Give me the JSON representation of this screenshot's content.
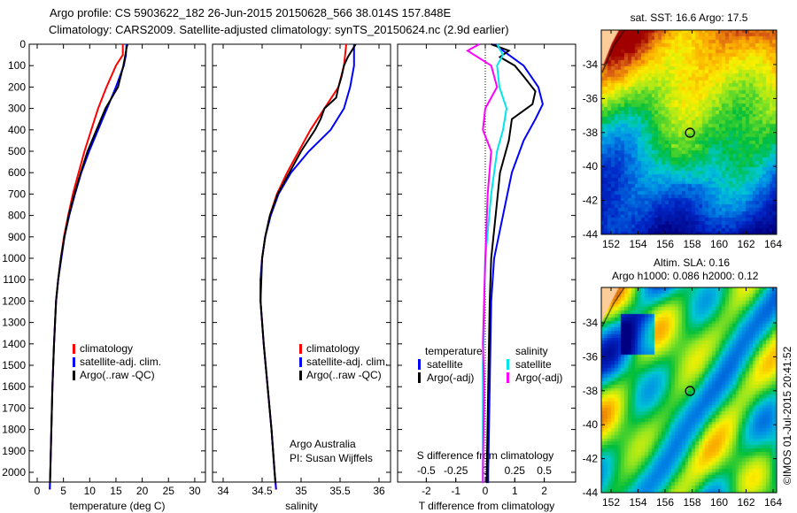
{
  "title_line1": "Argo profile: CS 5903622_182 26-Jun-2015 20150628_566 38.014S 157.848E",
  "title_line2": "Climatology: CARS2009. Satellite-adjusted climatology: synTS_20150624.nc (2.9d earlier)",
  "credit": "©IMOS 01-Jul-2015 20:41:52",
  "colors": {
    "climatology": "#ff0000",
    "satellite": "#0000ff",
    "argo": "#000000",
    "s_satellite": "#00e5ee",
    "s_argo": "#ff00ff"
  },
  "chart_data": [
    {
      "type": "line",
      "name": "temperature",
      "xlabel": "temperature (deg C)",
      "xlim": [
        -1.5,
        32
      ],
      "xticks": [
        "0",
        "5",
        "10",
        "15",
        "20",
        "25",
        "30"
      ],
      "ylim": [
        0,
        2090
      ],
      "yticks": [
        "0",
        "100",
        "200",
        "300",
        "400",
        "500",
        "600",
        "700",
        "800",
        "900",
        "1000",
        "1100",
        "1200",
        "1300",
        "1400",
        "1500",
        "1600",
        "1700",
        "1800",
        "1900",
        "2000"
      ],
      "legend": [
        "climatology",
        "satellite-adj. clim.",
        "Argo(..raw -QC)"
      ],
      "series": [
        {
          "name": "climatology",
          "color": "#ff0000",
          "points": [
            [
              0,
              16.3
            ],
            [
              50,
              16.3
            ],
            [
              100,
              15
            ],
            [
              200,
              13.2
            ],
            [
              300,
              11.6
            ],
            [
              400,
              10.3
            ],
            [
              500,
              9.0
            ],
            [
              600,
              7.9
            ],
            [
              700,
              6.8
            ],
            [
              800,
              5.9
            ],
            [
              900,
              5.1
            ],
            [
              1000,
              4.5
            ],
            [
              1100,
              4.0
            ],
            [
              1200,
              3.6
            ],
            [
              1400,
              3.2
            ],
            [
              1600,
              2.9
            ],
            [
              1800,
              2.7
            ],
            [
              2000,
              2.5
            ],
            [
              2080,
              2.4
            ]
          ]
        },
        {
          "name": "satellite-adj. clim.",
          "color": "#0000ff",
          "points": [
            [
              0,
              17.0
            ],
            [
              50,
              16.9
            ],
            [
              100,
              16.5
            ],
            [
              200,
              15.0
            ],
            [
              300,
              13.3
            ],
            [
              400,
              11.6
            ],
            [
              500,
              9.9
            ],
            [
              600,
              8.4
            ],
            [
              700,
              7.2
            ],
            [
              800,
              6.1
            ],
            [
              900,
              5.2
            ],
            [
              1000,
              4.6
            ],
            [
              1100,
              4.0
            ],
            [
              1200,
              3.6
            ],
            [
              1400,
              3.2
            ],
            [
              1600,
              2.9
            ],
            [
              1800,
              2.7
            ],
            [
              2000,
              2.5
            ],
            [
              2080,
              2.4
            ]
          ]
        },
        {
          "name": "Argo(..raw -QC)",
          "color": "#000000",
          "points": [
            [
              0,
              17.2
            ],
            [
              20,
              17.0
            ],
            [
              50,
              16.8
            ],
            [
              100,
              16.4
            ],
            [
              200,
              15.4
            ],
            [
              250,
              14.2
            ],
            [
              300,
              13.0
            ],
            [
              400,
              11.3
            ],
            [
              500,
              9.6
            ],
            [
              600,
              8.3
            ],
            [
              700,
              7.1
            ],
            [
              800,
              6.0
            ],
            [
              900,
              5.2
            ],
            [
              1000,
              4.5
            ],
            [
              1100,
              4.0
            ],
            [
              1200,
              3.6
            ],
            [
              1400,
              3.2
            ],
            [
              1600,
              2.9
            ],
            [
              1800,
              2.7
            ],
            [
              2000,
              2.5
            ],
            [
              2050,
              2.45
            ]
          ]
        }
      ]
    },
    {
      "type": "line",
      "name": "salinity",
      "xlabel": "salinity",
      "xlim": [
        33.8,
        36.1
      ],
      "xticks": [
        "34",
        "34.5",
        "35",
        "35.5",
        "36"
      ],
      "ylim": [
        0,
        2090
      ],
      "legend": [
        "climatology",
        "satellite-adj. clim.",
        "Argo(..raw -QC)"
      ],
      "annotation": [
        "Argo Australia",
        "PI: Susan Wijffels"
      ],
      "series": [
        {
          "name": "climatology",
          "color": "#ff0000",
          "points": [
            [
              0,
              35.58
            ],
            [
              100,
              35.55
            ],
            [
              200,
              35.48
            ],
            [
              300,
              35.3
            ],
            [
              400,
              35.12
            ],
            [
              500,
              34.97
            ],
            [
              600,
              34.82
            ],
            [
              700,
              34.69
            ],
            [
              800,
              34.6
            ],
            [
              900,
              34.54
            ],
            [
              1000,
              34.5
            ],
            [
              1100,
              34.48
            ],
            [
              1200,
              34.48
            ],
            [
              1400,
              34.52
            ],
            [
              1600,
              34.57
            ],
            [
              1800,
              34.62
            ],
            [
              2000,
              34.66
            ],
            [
              2080,
              34.68
            ]
          ]
        },
        {
          "name": "satellite-adj. clim.",
          "color": "#0000ff",
          "points": [
            [
              0,
              35.68
            ],
            [
              100,
              35.68
            ],
            [
              200,
              35.63
            ],
            [
              300,
              35.55
            ],
            [
              400,
              35.38
            ],
            [
              500,
              35.1
            ],
            [
              600,
              34.87
            ],
            [
              700,
              34.71
            ],
            [
              800,
              34.61
            ],
            [
              900,
              34.54
            ],
            [
              1000,
              34.5
            ],
            [
              1100,
              34.48
            ],
            [
              1200,
              34.48
            ],
            [
              1400,
              34.52
            ],
            [
              1600,
              34.57
            ],
            [
              1800,
              34.62
            ],
            [
              2000,
              34.66
            ],
            [
              2080,
              34.68
            ]
          ]
        },
        {
          "name": "Argo(..raw -QC)",
          "color": "#000000",
          "points": [
            [
              0,
              35.7
            ],
            [
              30,
              35.65
            ],
            [
              60,
              35.6
            ],
            [
              100,
              35.55
            ],
            [
              150,
              35.52
            ],
            [
              200,
              35.48
            ],
            [
              250,
              35.45
            ],
            [
              300,
              35.3
            ],
            [
              350,
              35.25
            ],
            [
              400,
              35.18
            ],
            [
              500,
              35.0
            ],
            [
              600,
              34.85
            ],
            [
              700,
              34.7
            ],
            [
              800,
              34.6
            ],
            [
              900,
              34.54
            ],
            [
              1000,
              34.5
            ],
            [
              1200,
              34.48
            ],
            [
              1400,
              34.52
            ],
            [
              1600,
              34.57
            ],
            [
              1800,
              34.62
            ],
            [
              2000,
              34.66
            ],
            [
              2050,
              34.67
            ]
          ]
        }
      ]
    },
    {
      "type": "line",
      "name": "difference",
      "xlabel": "T difference from climatology",
      "xlabel2": "S difference from climatology",
      "xlim": [
        -3,
        3
      ],
      "xticks": [
        "-2",
        "-1",
        "0",
        "1",
        "2"
      ],
      "xticks2": [
        "-0.5",
        "-0.25",
        "0",
        "0.25",
        "0.5"
      ],
      "ylim": [
        0,
        2090
      ],
      "legend_headers": [
        "temperature",
        "salinity"
      ],
      "legend_t": [
        "satellite",
        "Argo(-adj)"
      ],
      "legend_s": [
        "satellite",
        "Argo(-adj)"
      ],
      "series": [
        {
          "name": "T satellite",
          "color": "#0000ff",
          "unit": "T",
          "points": [
            [
              0,
              0.3
            ],
            [
              50,
              0.8
            ],
            [
              100,
              1.3
            ],
            [
              200,
              1.8
            ],
            [
              280,
              1.95
            ],
            [
              350,
              1.7
            ],
            [
              450,
              1.3
            ],
            [
              600,
              0.9
            ],
            [
              800,
              0.6
            ],
            [
              1000,
              0.3
            ],
            [
              1200,
              0.2
            ],
            [
              1600,
              0.15
            ],
            [
              2000,
              0.1
            ],
            [
              2050,
              0.1
            ]
          ]
        },
        {
          "name": "T Argo(-adj)",
          "color": "#000000",
          "unit": "T",
          "points": [
            [
              0,
              0.2
            ],
            [
              30,
              0.8
            ],
            [
              60,
              0.5
            ],
            [
              100,
              1.0
            ],
            [
              150,
              1.3
            ],
            [
              220,
              1.7
            ],
            [
              280,
              1.6
            ],
            [
              350,
              0.9
            ],
            [
              450,
              0.8
            ],
            [
              600,
              0.5
            ],
            [
              800,
              0.35
            ],
            [
              1000,
              0.2
            ],
            [
              1200,
              0.15
            ],
            [
              1600,
              0.1
            ],
            [
              2000,
              0.05
            ],
            [
              2050,
              0.05
            ]
          ]
        },
        {
          "name": "S satellite",
          "color": "#00e5ee",
          "unit": "S",
          "points": [
            [
              0,
              0.1
            ],
            [
              50,
              0.15
            ],
            [
              100,
              0.1
            ],
            [
              200,
              0.12
            ],
            [
              300,
              0.18
            ],
            [
              400,
              0.15
            ],
            [
              500,
              0.1
            ],
            [
              700,
              0.05
            ],
            [
              1000,
              0.0
            ],
            [
              1500,
              -0.02
            ],
            [
              2000,
              -0.02
            ],
            [
              2050,
              -0.02
            ]
          ]
        },
        {
          "name": "S Argo(-adj)",
          "color": "#ff00ff",
          "unit": "S",
          "points": [
            [
              0,
              -0.05
            ],
            [
              30,
              -0.15
            ],
            [
              100,
              0.05
            ],
            [
              200,
              0.1
            ],
            [
              300,
              0.0
            ],
            [
              400,
              -0.02
            ],
            [
              500,
              0.05
            ],
            [
              700,
              0.02
            ],
            [
              1000,
              0.0
            ],
            [
              1400,
              -0.02
            ],
            [
              1600,
              -0.01
            ],
            [
              2000,
              -0.02
            ],
            [
              2050,
              -0.02
            ]
          ]
        }
      ]
    },
    {
      "type": "heatmap",
      "name": "sst-map",
      "title": "sat. SST: 16.6  Argo: 17.5",
      "xlim": [
        151.3,
        164.3
      ],
      "ylim": [
        -44,
        -32
      ],
      "xticks": [
        "152",
        "154",
        "156",
        "158",
        "160",
        "162",
        "164"
      ],
      "yticks": [
        "-34",
        "-36",
        "-38",
        "-40",
        "-42",
        "-44"
      ],
      "marker": [
        157.848,
        -38.014
      ]
    },
    {
      "type": "heatmap",
      "name": "sla-map",
      "title": "Altim. SLA: 0.16",
      "subtitle": "Argo h1000: 0.086 h2000: 0.12",
      "xlim": [
        151.3,
        164.3
      ],
      "ylim": [
        -44,
        -32
      ],
      "xticks": [
        "152",
        "154",
        "156",
        "158",
        "160",
        "162",
        "164"
      ],
      "yticks": [
        "-34",
        "-36",
        "-38",
        "-40",
        "-42",
        "-44"
      ],
      "marker": [
        157.848,
        -38.014
      ]
    }
  ]
}
